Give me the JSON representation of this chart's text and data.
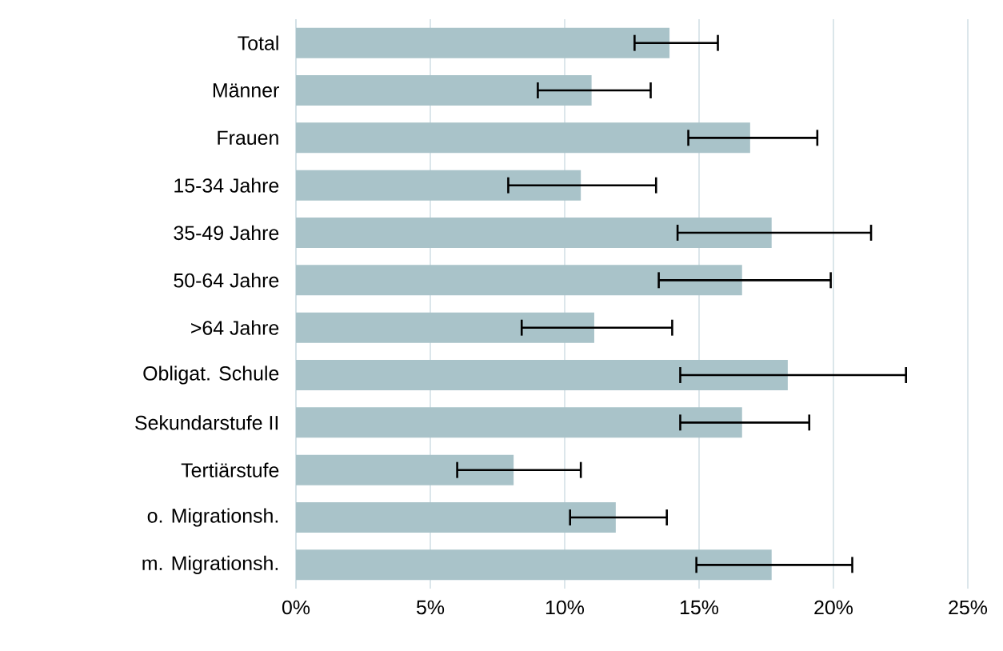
{
  "chart_data": {
    "type": "bar",
    "orientation": "horizontal",
    "categories": [
      "Total",
      "Männer",
      "Frauen",
      "15-34 Jahre",
      "35-49 Jahre",
      "50-64 Jahre",
      ">64 Jahre",
      "Obligat. Schule",
      "Sekundarstufe II",
      "Tertiärstufe",
      "o. Migrationsh.",
      "m. Migrationsh."
    ],
    "values": [
      13.9,
      11.0,
      16.9,
      10.6,
      17.7,
      16.6,
      11.1,
      18.3,
      16.6,
      8.1,
      11.9,
      17.7
    ],
    "errors": [
      [
        12.6,
        15.7
      ],
      [
        9.0,
        13.2
      ],
      [
        14.6,
        19.4
      ],
      [
        7.9,
        13.4
      ],
      [
        14.2,
        21.4
      ],
      [
        13.5,
        19.9
      ],
      [
        8.4,
        14.0
      ],
      [
        14.3,
        22.7
      ],
      [
        14.3,
        19.1
      ],
      [
        6.0,
        10.6
      ],
      [
        10.2,
        13.8
      ],
      [
        14.9,
        20.7
      ]
    ],
    "color": "#a9c3c9",
    "xlim": [
      0,
      25
    ],
    "xticks": [
      {
        "value": 0,
        "label": "0%"
      },
      {
        "value": 5,
        "label": "5%"
      },
      {
        "value": 10,
        "label": "10%"
      },
      {
        "value": 15,
        "label": "15%"
      },
      {
        "value": 20,
        "label": "20%"
      },
      {
        "value": 25,
        "label": "25%"
      }
    ],
    "grid": "x"
  }
}
